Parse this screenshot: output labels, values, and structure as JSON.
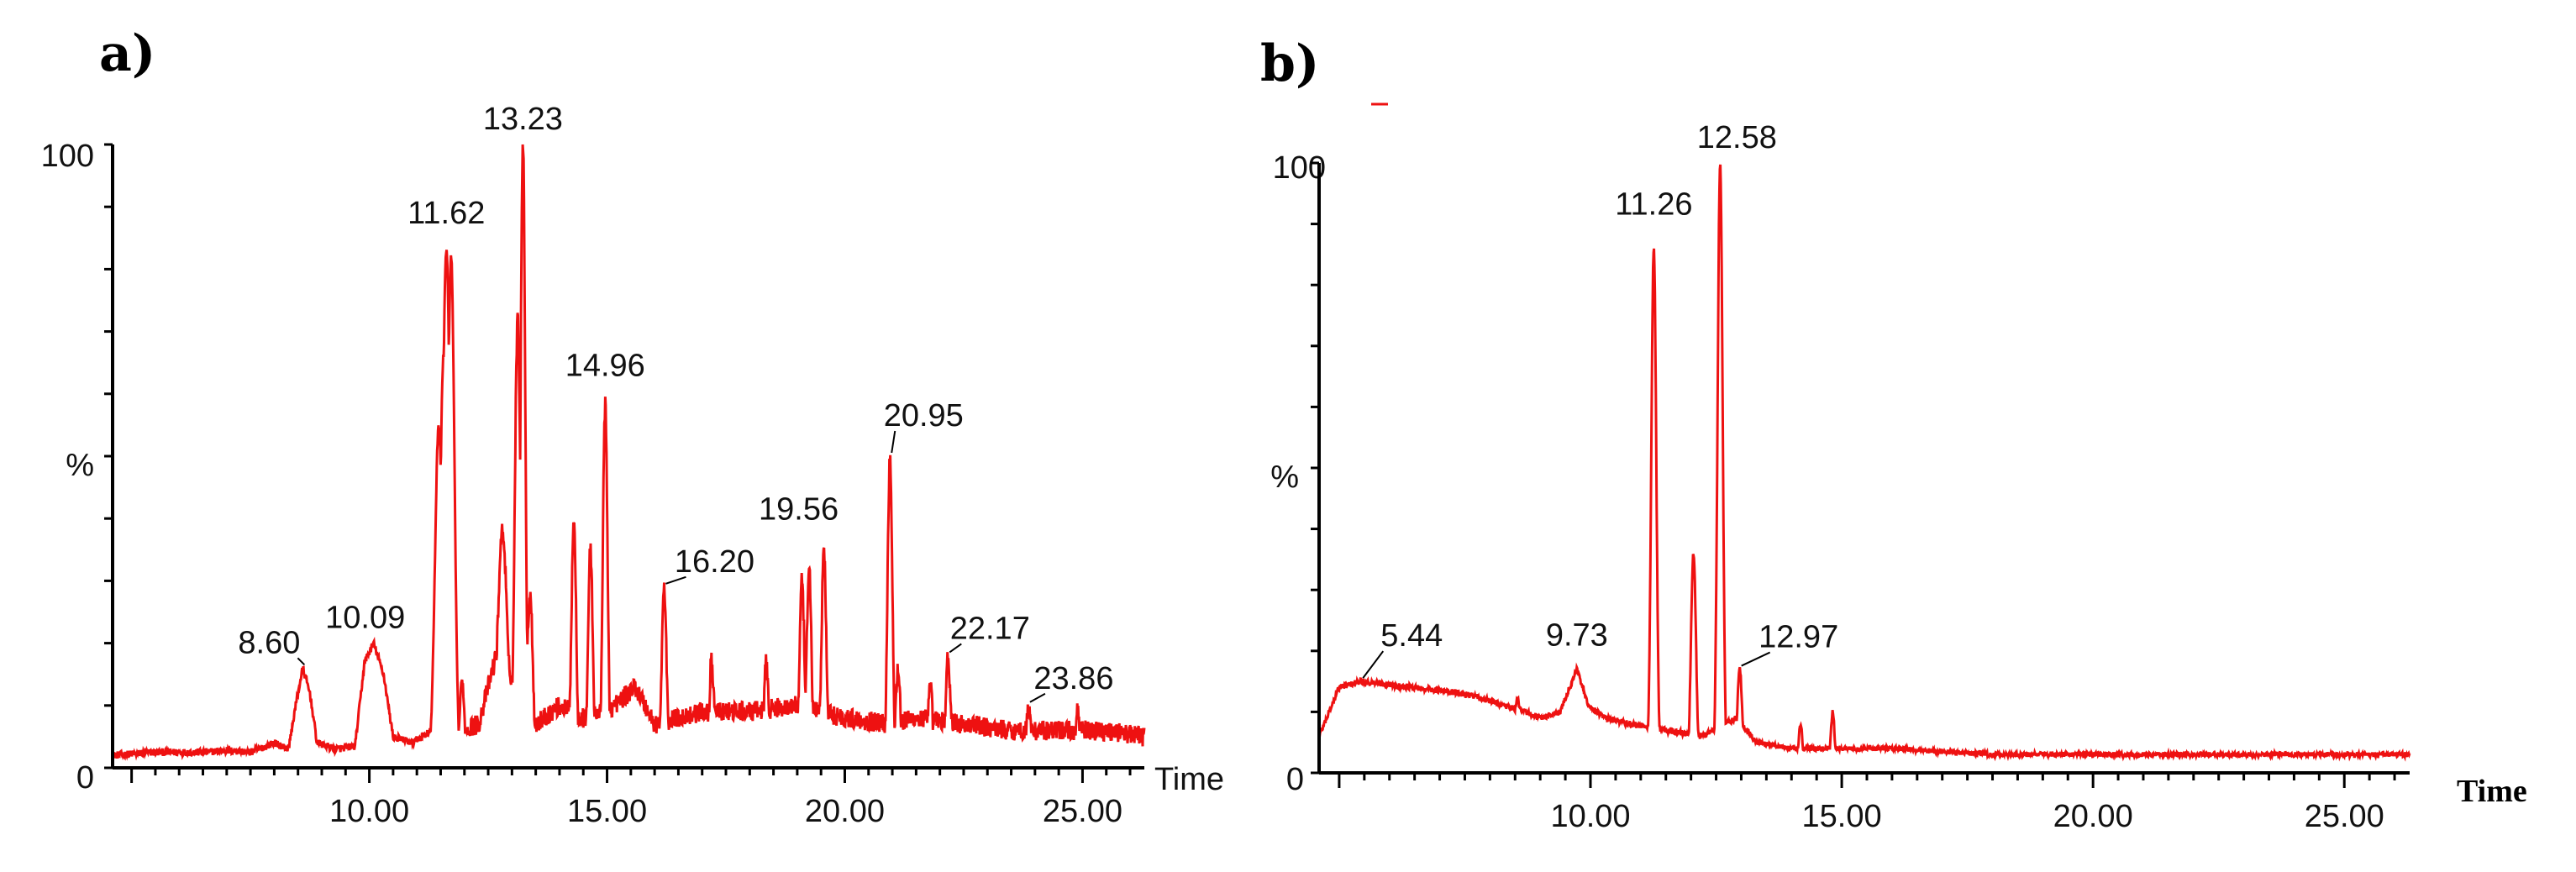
{
  "colors": {
    "trace": "#ee1111",
    "axis": "#000000",
    "background": "#ffffff"
  },
  "chart_data": [
    {
      "type": "line",
      "panel_label": "a)",
      "xlabel": "Time",
      "ylabel": "%",
      "xlim": [
        4.6,
        26.3
      ],
      "ylim": [
        0,
        100
      ],
      "x_ticks": [
        10,
        15,
        20,
        25
      ],
      "x_tick_labels": [
        "10.00",
        "15.00",
        "20.00",
        "25.00"
      ],
      "y_tick_labels": {
        "top": "100",
        "mid": "%",
        "bottom": "0"
      },
      "baseline": [
        [
          4.6,
          2
        ],
        [
          5.5,
          2.5
        ],
        [
          6.5,
          2.5
        ],
        [
          7,
          2.8
        ],
        [
          7.5,
          2.5
        ],
        [
          8.0,
          4
        ],
        [
          8.3,
          3
        ],
        [
          8.45,
          10
        ],
        [
          8.6,
          16
        ],
        [
          8.75,
          12
        ],
        [
          8.9,
          4
        ],
        [
          9.3,
          3
        ],
        [
          9.7,
          3.5
        ],
        [
          9.9,
          17
        ],
        [
          10.09,
          20
        ],
        [
          10.3,
          15
        ],
        [
          10.5,
          5
        ],
        [
          10.9,
          4
        ],
        [
          11.3,
          6
        ],
        [
          11.5,
          16
        ],
        [
          11.9,
          6
        ],
        [
          12.3,
          7
        ],
        [
          12.8,
          22
        ],
        [
          13.0,
          14
        ],
        [
          13.5,
          7
        ],
        [
          14.0,
          10
        ],
        [
          14.5,
          8
        ],
        [
          15.0,
          9
        ],
        [
          15.6,
          13
        ],
        [
          16.0,
          7
        ],
        [
          17.0,
          9
        ],
        [
          18.0,
          9
        ],
        [
          19.0,
          10
        ],
        [
          20.0,
          8
        ],
        [
          21.0,
          7
        ],
        [
          21.5,
          8
        ],
        [
          22.5,
          7
        ],
        [
          23.5,
          6
        ],
        [
          24.5,
          6
        ],
        [
          25.5,
          6
        ],
        [
          26.3,
          5
        ]
      ],
      "peaks": [
        {
          "x": 11.46,
          "y": 55,
          "w": 0.08
        },
        {
          "x": 11.56,
          "y": 66,
          "w": 0.07
        },
        {
          "x": 11.62,
          "y": 83,
          "w": 0.08
        },
        {
          "x": 11.72,
          "y": 82,
          "w": 0.07
        },
        {
          "x": 11.95,
          "y": 14,
          "w": 0.05
        },
        {
          "x": 12.8,
          "y": 38,
          "w": 0.1
        },
        {
          "x": 13.12,
          "y": 72,
          "w": 0.06
        },
        {
          "x": 13.23,
          "y": 100,
          "w": 0.05
        },
        {
          "x": 13.38,
          "y": 28,
          "w": 0.06
        },
        {
          "x": 14.3,
          "y": 40,
          "w": 0.05
        },
        {
          "x": 14.65,
          "y": 35,
          "w": 0.05
        },
        {
          "x": 14.96,
          "y": 58,
          "w": 0.05
        },
        {
          "x": 16.2,
          "y": 29,
          "w": 0.05
        },
        {
          "x": 17.2,
          "y": 17,
          "w": 0.05
        },
        {
          "x": 18.35,
          "y": 17,
          "w": 0.05
        },
        {
          "x": 19.1,
          "y": 30,
          "w": 0.05
        },
        {
          "x": 19.25,
          "y": 32,
          "w": 0.05
        },
        {
          "x": 19.56,
          "y": 35,
          "w": 0.05
        },
        {
          "x": 20.95,
          "y": 50,
          "w": 0.05
        },
        {
          "x": 21.12,
          "y": 16,
          "w": 0.05
        },
        {
          "x": 21.8,
          "y": 13,
          "w": 0.05
        },
        {
          "x": 22.17,
          "y": 18,
          "w": 0.05
        },
        {
          "x": 23.86,
          "y": 10,
          "w": 0.05
        },
        {
          "x": 24.9,
          "y": 9,
          "w": 0.05
        }
      ],
      "peak_labels": [
        {
          "x": 8.6,
          "y": 16,
          "text": "8.60"
        },
        {
          "x": 10.09,
          "y": 20,
          "text": "10.09"
        },
        {
          "x": 11.62,
          "y": 83,
          "text": "11.62"
        },
        {
          "x": 13.23,
          "y": 100,
          "text": "13.23"
        },
        {
          "x": 14.96,
          "y": 58,
          "text": "14.96"
        },
        {
          "x": 16.2,
          "y": 29,
          "text": "16.20"
        },
        {
          "x": 19.56,
          "y": 35,
          "text": "19.56"
        },
        {
          "x": 20.95,
          "y": 50,
          "text": "20.95"
        },
        {
          "x": 22.17,
          "y": 18,
          "text": "22.17"
        },
        {
          "x": 23.86,
          "y": 10,
          "text": "23.86"
        }
      ]
    },
    {
      "type": "line",
      "panel_label": "b)",
      "xlabel": "Time",
      "ylabel": "%",
      "xlim": [
        4.6,
        26.3
      ],
      "ylim": [
        0,
        100
      ],
      "x_ticks": [
        10,
        15,
        20,
        25
      ],
      "x_tick_labels": [
        "10.00",
        "15.00",
        "20.00",
        "25.00"
      ],
      "y_tick_labels": {
        "top": "100",
        "mid": "%",
        "bottom": "0"
      },
      "baseline": [
        [
          4.6,
          6
        ],
        [
          5.0,
          14
        ],
        [
          5.44,
          15
        ],
        [
          6.5,
          14
        ],
        [
          7.5,
          13
        ],
        [
          8.3,
          11
        ],
        [
          8.7,
          10
        ],
        [
          9.0,
          9
        ],
        [
          9.4,
          10
        ],
        [
          9.73,
          17
        ],
        [
          9.95,
          11
        ],
        [
          10.3,
          9
        ],
        [
          10.8,
          8
        ],
        [
          11.5,
          7
        ],
        [
          12.2,
          6
        ],
        [
          12.9,
          9
        ],
        [
          13.3,
          5
        ],
        [
          14.0,
          4
        ],
        [
          15.0,
          4
        ],
        [
          16.0,
          4
        ],
        [
          18.0,
          3
        ],
        [
          20.0,
          3
        ],
        [
          22.0,
          3
        ],
        [
          24.0,
          3
        ],
        [
          26.3,
          3
        ]
      ],
      "peaks": [
        {
          "x": 8.55,
          "y": 12,
          "w": 0.08
        },
        {
          "x": 11.26,
          "y": 86,
          "w": 0.05
        },
        {
          "x": 12.05,
          "y": 36,
          "w": 0.05
        },
        {
          "x": 12.58,
          "y": 100,
          "w": 0.05
        },
        {
          "x": 12.97,
          "y": 17,
          "w": 0.05
        },
        {
          "x": 14.18,
          "y": 8,
          "w": 0.04
        },
        {
          "x": 14.82,
          "y": 10,
          "w": 0.04
        }
      ],
      "peak_labels": [
        {
          "x": 5.44,
          "y": 15,
          "text": "5.44"
        },
        {
          "x": 9.73,
          "y": 17,
          "text": "9.73"
        },
        {
          "x": 11.26,
          "y": 86,
          "text": "11.26"
        },
        {
          "x": 12.58,
          "y": 100,
          "text": "12.58"
        },
        {
          "x": 12.97,
          "y": 17,
          "text": "12.97"
        }
      ]
    }
  ]
}
